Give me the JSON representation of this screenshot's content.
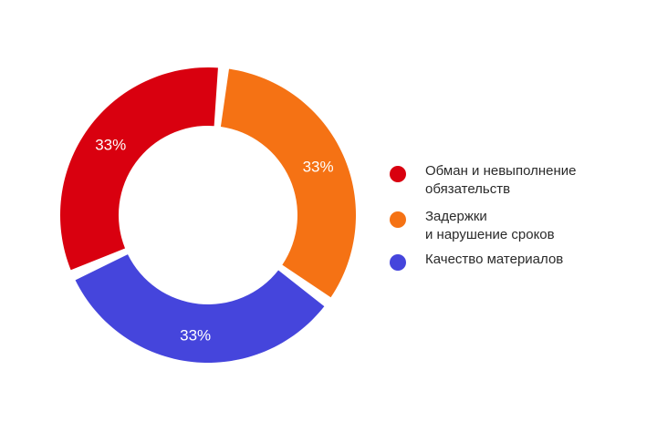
{
  "chart_data": {
    "type": "pie",
    "variant": "donut",
    "title": "",
    "slices": [
      {
        "label": "Обман и невыполнение\nобязательств",
        "value": 33,
        "display": "33%",
        "color": "#d9000f"
      },
      {
        "label": "Задержки\nи нарушение сроков",
        "value": 33,
        "display": "33%",
        "color": "#f57214"
      },
      {
        "label": "Качество материалов",
        "value": 33,
        "display": "33%",
        "color": "#4545dc"
      }
    ],
    "legend_position": "right",
    "label_color": "#ffffff"
  }
}
